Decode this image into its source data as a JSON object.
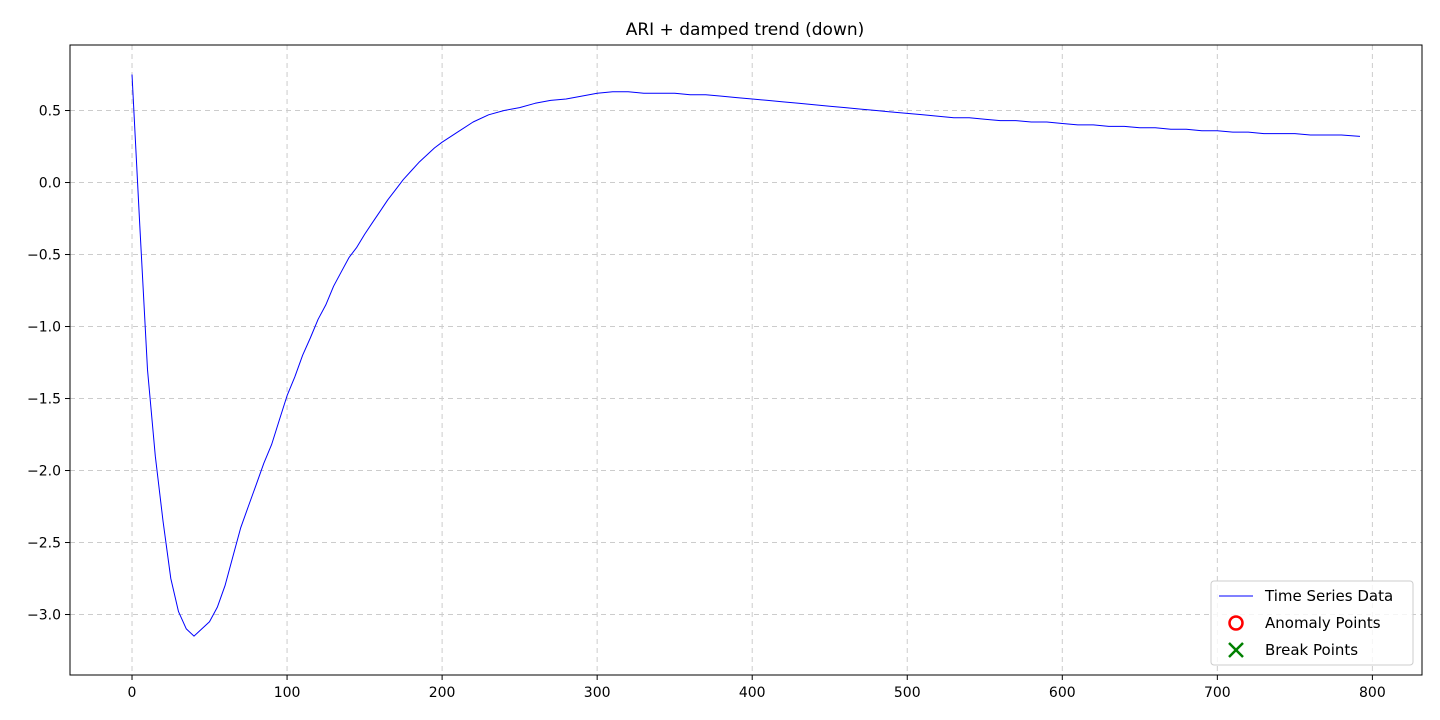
{
  "chart_data": {
    "type": "line",
    "title": "ARI + damped trend (down)",
    "xlabel": "",
    "ylabel": "",
    "xlim": [
      -40,
      832
    ],
    "ylim": [
      -3.42,
      0.955
    ],
    "x_ticks": [
      0,
      100,
      200,
      300,
      400,
      500,
      600,
      700,
      800
    ],
    "y_ticks": [
      -3.0,
      -2.5,
      -2.0,
      -1.5,
      -1.0,
      -0.5,
      0.0,
      0.5
    ],
    "y_tick_labels": [
      "−3.0",
      "−2.5",
      "−2.0",
      "−1.5",
      "−1.0",
      "−0.5",
      "0.0",
      "0.5"
    ],
    "grid": true,
    "legend_position": "lower-right",
    "legend": [
      "Time Series Data",
      "Anomaly Points",
      "Break Points"
    ],
    "colors": {
      "series": "#0000ff",
      "anomaly": "#ff0000",
      "break": "#008000",
      "grid": "#cccccc"
    },
    "series": [
      {
        "name": "Time Series Data",
        "x": [
          0,
          5,
          10,
          15,
          20,
          25,
          30,
          35,
          40,
          45,
          50,
          55,
          60,
          65,
          70,
          75,
          80,
          85,
          90,
          95,
          100,
          105,
          110,
          115,
          120,
          125,
          130,
          135,
          140,
          145,
          150,
          155,
          160,
          165,
          170,
          175,
          180,
          185,
          190,
          195,
          200,
          210,
          220,
          230,
          240,
          250,
          260,
          270,
          280,
          290,
          300,
          310,
          320,
          330,
          340,
          350,
          360,
          370,
          380,
          390,
          400,
          410,
          420,
          430,
          440,
          450,
          460,
          470,
          480,
          490,
          500,
          510,
          520,
          530,
          540,
          550,
          560,
          570,
          580,
          590,
          600,
          610,
          620,
          630,
          640,
          650,
          660,
          670,
          680,
          690,
          700,
          710,
          720,
          730,
          740,
          750,
          760,
          770,
          780,
          792
        ],
        "values": [
          0.75,
          -0.3,
          -1.3,
          -1.9,
          -2.35,
          -2.75,
          -2.98,
          -3.1,
          -3.15,
          -3.1,
          -3.05,
          -2.95,
          -2.8,
          -2.6,
          -2.4,
          -2.25,
          -2.1,
          -1.95,
          -1.82,
          -1.65,
          -1.48,
          -1.35,
          -1.2,
          -1.08,
          -0.95,
          -0.85,
          -0.72,
          -0.62,
          -0.52,
          -0.45,
          -0.36,
          -0.28,
          -0.2,
          -0.12,
          -0.05,
          0.02,
          0.08,
          0.14,
          0.19,
          0.24,
          0.28,
          0.35,
          0.42,
          0.47,
          0.5,
          0.52,
          0.55,
          0.57,
          0.58,
          0.6,
          0.62,
          0.63,
          0.63,
          0.62,
          0.62,
          0.62,
          0.61,
          0.61,
          0.6,
          0.59,
          0.58,
          0.57,
          0.56,
          0.55,
          0.54,
          0.53,
          0.52,
          0.51,
          0.5,
          0.49,
          0.48,
          0.47,
          0.46,
          0.45,
          0.45,
          0.44,
          0.43,
          0.43,
          0.42,
          0.42,
          0.41,
          0.4,
          0.4,
          0.39,
          0.39,
          0.38,
          0.38,
          0.37,
          0.37,
          0.36,
          0.36,
          0.35,
          0.35,
          0.34,
          0.34,
          0.34,
          0.33,
          0.33,
          0.33,
          0.32
        ]
      }
    ],
    "anomaly_points": [],
    "break_points": []
  }
}
